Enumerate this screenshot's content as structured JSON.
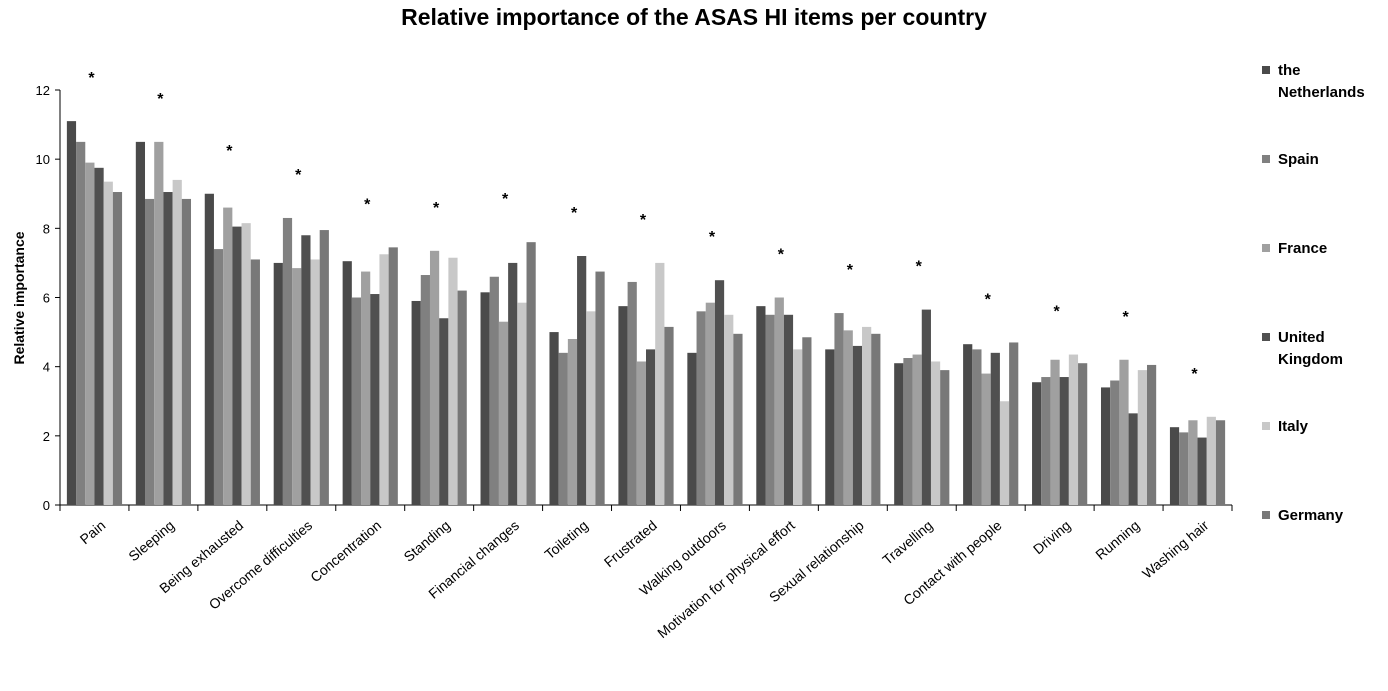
{
  "chart_data": {
    "type": "bar",
    "title": "Relative importance of  the ASAS HI items per country",
    "ylabel": "Relative importance",
    "xlabel": "",
    "ylim": [
      0,
      12
    ],
    "yticks": [
      "0",
      "2",
      "4",
      "6",
      "8",
      "10",
      "12"
    ],
    "grid": false,
    "legend_position": "right",
    "significance_marker": "*",
    "categories": [
      "Pain",
      "Sleeping",
      "Being exhausted",
      "Overcome difficulties",
      "Concentration",
      "Standing",
      "Financial changes",
      "Toileting",
      "Frustrated",
      "Walking outdoors",
      "Motivation for physical effort",
      "Sexual relationship",
      "Travelling",
      "Contact with people",
      "Driving",
      "Running",
      "Washing hair"
    ],
    "significant": [
      true,
      true,
      true,
      true,
      true,
      true,
      true,
      true,
      true,
      true,
      true,
      true,
      true,
      true,
      true,
      true,
      true
    ],
    "series": [
      {
        "name": "the Netherlands",
        "color": "#4a4a4a",
        "values": [
          11.1,
          10.5,
          9.0,
          7.0,
          7.05,
          5.9,
          6.15,
          5.0,
          5.75,
          4.4,
          5.75,
          4.5,
          4.1,
          4.65,
          3.55,
          3.4,
          2.25
        ]
      },
      {
        "name": "Spain",
        "color": "#808080",
        "values": [
          10.5,
          8.85,
          7.4,
          8.3,
          6.0,
          6.65,
          6.6,
          4.4,
          6.45,
          5.6,
          5.5,
          5.55,
          4.25,
          4.5,
          3.7,
          3.6,
          2.1
        ]
      },
      {
        "name": "France",
        "color": "#a0a0a0",
        "values": [
          9.9,
          10.5,
          8.6,
          6.85,
          6.75,
          7.35,
          5.3,
          4.8,
          4.15,
          5.85,
          6.0,
          5.05,
          4.35,
          3.8,
          4.2,
          4.2,
          2.45
        ]
      },
      {
        "name": "United Kingdom",
        "color": "#505050",
        "values": [
          9.75,
          9.05,
          8.05,
          7.8,
          6.1,
          5.4,
          7.0,
          7.2,
          4.5,
          6.5,
          5.5,
          4.6,
          5.65,
          4.4,
          3.7,
          2.65,
          1.95
        ]
      },
      {
        "name": "Italy",
        "color": "#c8c8c8",
        "values": [
          9.35,
          9.4,
          8.15,
          7.1,
          7.25,
          7.15,
          5.85,
          5.6,
          7.0,
          5.5,
          4.5,
          5.15,
          4.15,
          3.0,
          4.35,
          3.9,
          2.55
        ]
      },
      {
        "name": "Germany",
        "color": "#787878",
        "values": [
          9.05,
          8.85,
          7.1,
          7.95,
          7.45,
          6.2,
          7.6,
          6.75,
          5.15,
          4.95,
          4.85,
          4.95,
          3.9,
          4.7,
          4.1,
          4.05,
          2.45
        ]
      }
    ]
  }
}
